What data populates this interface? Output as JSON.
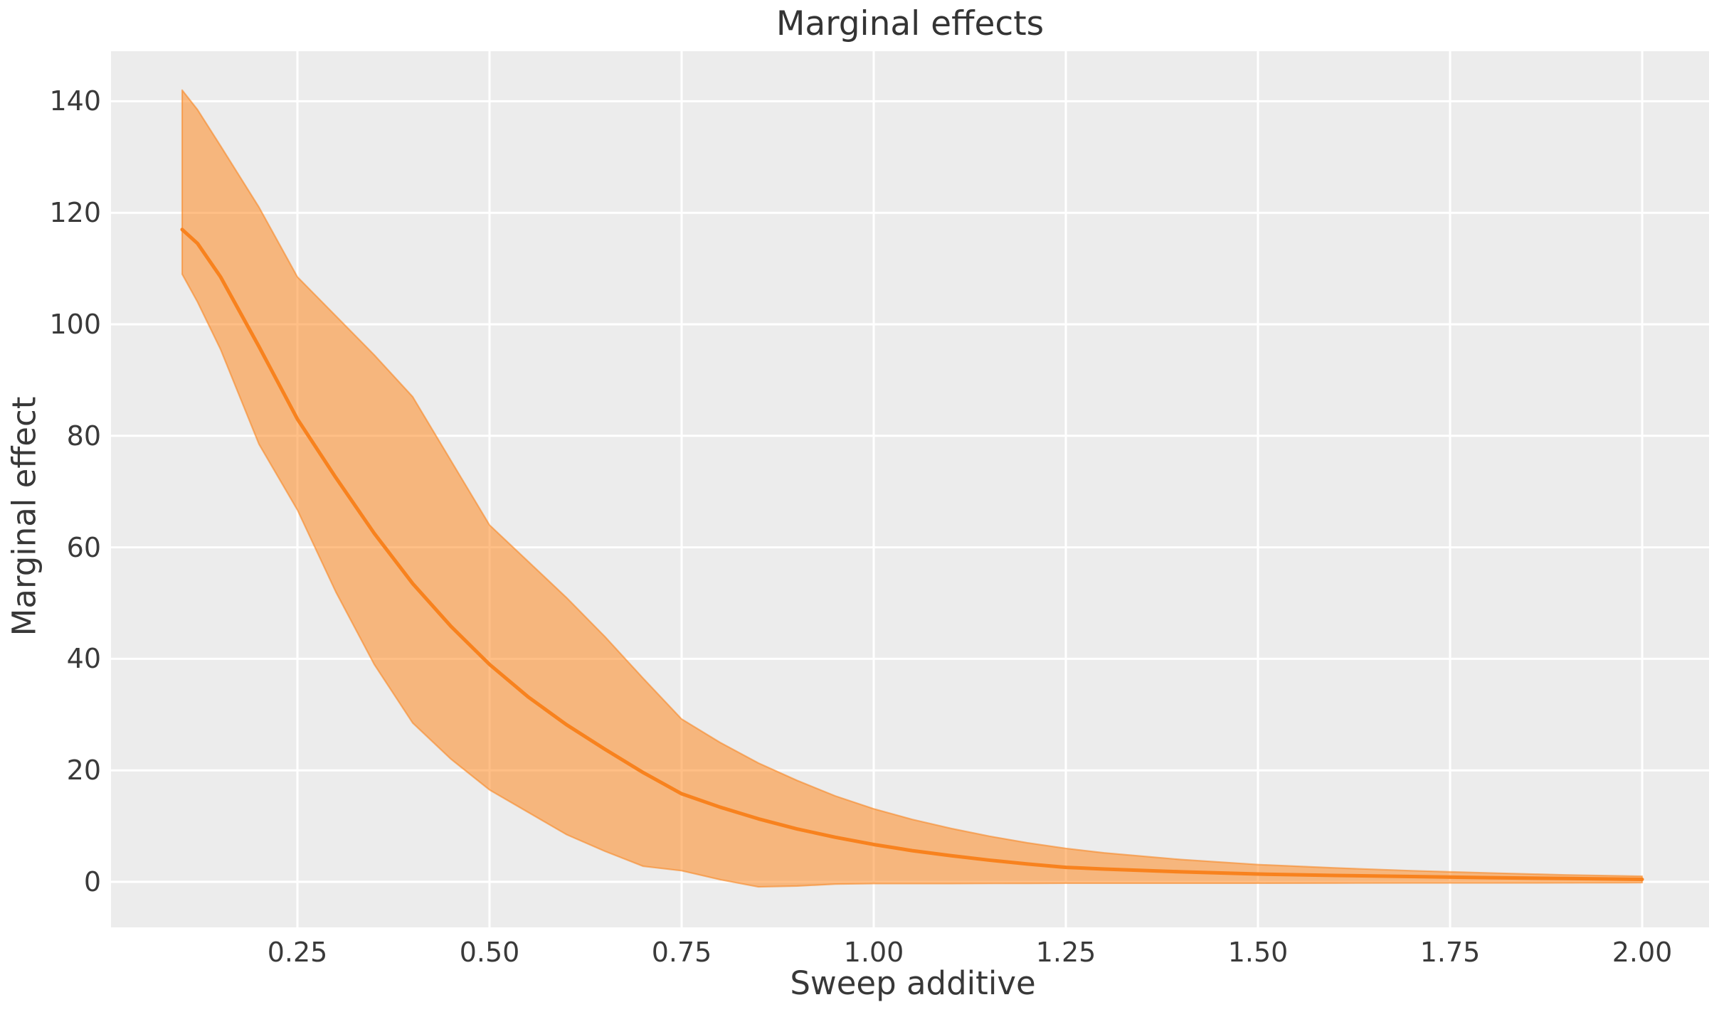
{
  "figure": {
    "title": "Marginal effects",
    "colors": {
      "figure_background": "#ffffff",
      "plot_background": "#ececec",
      "gridline": "#ffffff",
      "mean_line": "#f8821e",
      "band_fill": "rgba(255,127,14,0.5)",
      "band_edge": "rgba(248,130,25,0.55)",
      "text": "#3a3a3a"
    }
  },
  "chart_data": {
    "type": "line",
    "title": "Marginal effects",
    "xlabel": "Sweep additive",
    "ylabel": "Marginal effect",
    "grid": true,
    "legend": "none",
    "xlim": [
      0.007,
      2.087
    ],
    "ylim": [
      -8.2,
      149
    ],
    "x_ticks": [
      0.25,
      0.5,
      0.75,
      1.0,
      1.25,
      1.5,
      1.75,
      2.0
    ],
    "x_tick_labels": [
      "0.25",
      "0.50",
      "0.75",
      "1.00",
      "1.25",
      "1.50",
      "1.75",
      "2.00"
    ],
    "y_ticks": [
      0,
      20,
      40,
      60,
      80,
      100,
      120,
      140
    ],
    "y_tick_labels": [
      "0",
      "20",
      "40",
      "60",
      "80",
      "100",
      "120",
      "140"
    ],
    "x": [
      0.1,
      0.12,
      0.15,
      0.2,
      0.25,
      0.3,
      0.35,
      0.4,
      0.45,
      0.5,
      0.55,
      0.6,
      0.65,
      0.7,
      0.75,
      0.8,
      0.85,
      0.9,
      0.95,
      1.0,
      1.05,
      1.1,
      1.15,
      1.2,
      1.25,
      1.3,
      1.4,
      1.5,
      1.6,
      1.7,
      1.8,
      1.9,
      2.0
    ],
    "series": [
      {
        "name": "mean_marginal_effect",
        "values": [
          117,
          114.5,
          108.5,
          96,
          83,
          72.5,
          62.5,
          53.5,
          45.8,
          39,
          33.2,
          28.2,
          23.8,
          19.6,
          15.8,
          13.4,
          11.3,
          9.5,
          8.0,
          6.7,
          5.6,
          4.7,
          3.9,
          3.2,
          2.6,
          2.3,
          1.8,
          1.4,
          1.15,
          0.95,
          0.75,
          0.6,
          0.45
        ]
      },
      {
        "name": "ci_upper",
        "values": [
          142,
          138.5,
          132,
          121,
          108.5,
          101.5,
          94.5,
          87,
          75.5,
          64,
          57.5,
          51,
          44,
          36.5,
          29.2,
          25,
          21.3,
          18.2,
          15.4,
          13.1,
          11.2,
          9.6,
          8.2,
          7.0,
          6.0,
          5.2,
          4.0,
          3.1,
          2.5,
          2.0,
          1.6,
          1.25,
          1.0
        ]
      },
      {
        "name": "ci_lower",
        "values": [
          109,
          104,
          95.5,
          78.5,
          66.7,
          52,
          39,
          28.5,
          22,
          16.5,
          12.5,
          8.5,
          5.5,
          2.8,
          2.0,
          0.4,
          -0.9,
          -0.75,
          -0.4,
          -0.3,
          -0.3,
          -0.3,
          -0.28,
          -0.27,
          -0.25,
          -0.25,
          -0.25,
          -0.25,
          -0.22,
          -0.2,
          -0.2,
          -0.18,
          -0.15
        ]
      }
    ]
  }
}
